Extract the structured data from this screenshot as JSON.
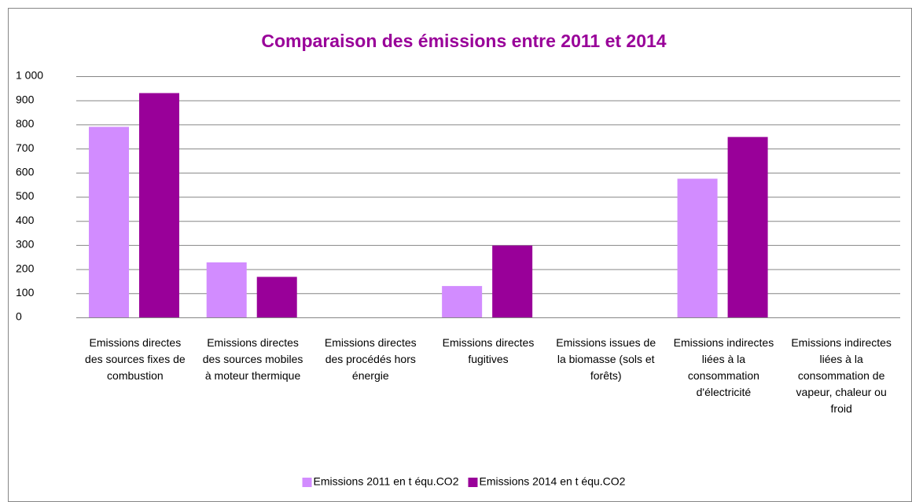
{
  "chart_data": {
    "type": "bar",
    "title": "Comparaison des émissions  entre 2011 et 2014",
    "categories": [
      "Emissions directes des sources fixes de combustion",
      "Emissions directes des sources mobiles à moteur thermique",
      "Emissions directes des procédés hors énergie",
      "Emissions directes fugitives",
      "Emissions issues de la biomasse (sols et forêts)",
      "Emissions indirectes liées à la consommation d'électricité",
      "Emissions indirectes liées à la consommation de vapeur, chaleur ou froid"
    ],
    "series": [
      {
        "name": "Emissions 2011 en t équ.CO2",
        "color": "#d28cff",
        "values": [
          790,
          228,
          0,
          130,
          0,
          575,
          0
        ]
      },
      {
        "name": "Emissions 2014 en t équ.CO2",
        "color": "#990099",
        "values": [
          930,
          168,
          0,
          298,
          0,
          748,
          0
        ]
      }
    ],
    "ylim": [
      0,
      1000
    ],
    "yticks": [
      0,
      100,
      200,
      300,
      400,
      500,
      600,
      700,
      800,
      900,
      {
        "value": 1000,
        "label": "1 000"
      }
    ],
    "grid": true,
    "legend": "bottom"
  }
}
